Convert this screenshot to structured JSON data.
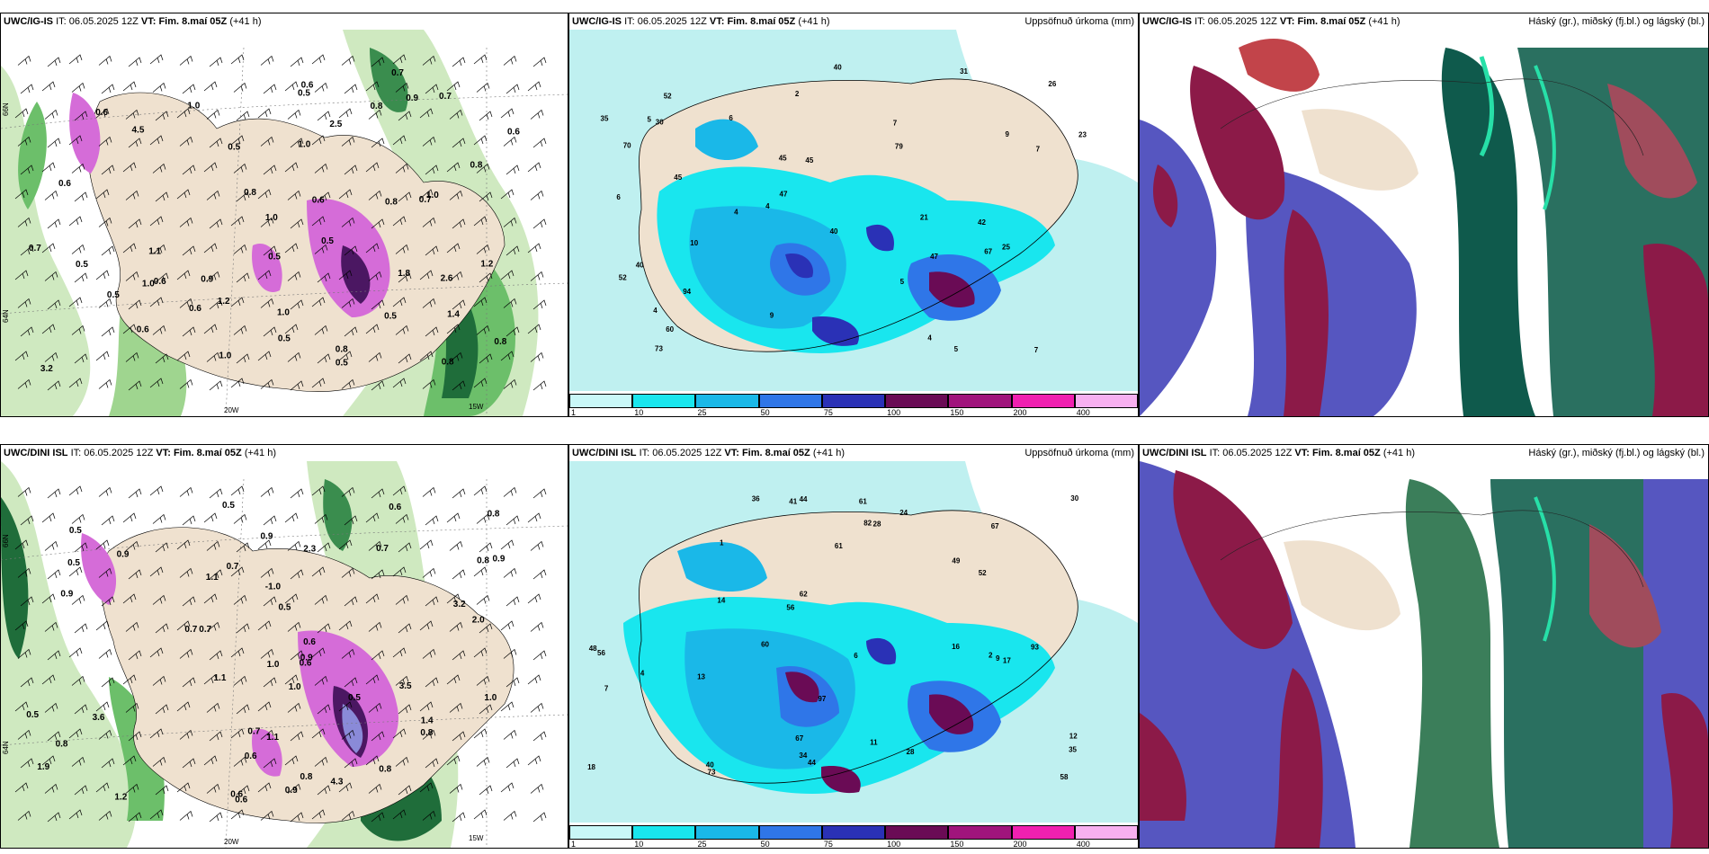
{
  "rows": [
    {
      "model_label": "UWC/IG-IS",
      "it_label": "IT:",
      "it_value": "06.05.2025 12Z",
      "vt_label": "VT:",
      "vt_value": "Fim. 8.maí 05Z",
      "lead": "(+41 h)",
      "wind_labels": [
        "0.8",
        "1.0",
        "0.8",
        "0.6",
        "1.0",
        "0.7",
        "0.5",
        "0.5",
        "1.0",
        "0.7",
        "0.6",
        "0.5",
        "1.2",
        "0.7",
        "1.0",
        "0.5",
        "0.6",
        "0.6",
        "0.8",
        "1.4",
        "2.6",
        "3.2",
        "2.5",
        "1.2",
        "4.5",
        "1.8",
        "0.6",
        "0.8",
        "0.5",
        "0.6",
        "0.5",
        "0.9",
        "1.0",
        "0.6",
        "0.5",
        "0.8",
        "0.8",
        "1.0",
        "1.1",
        "0.9",
        "0.8",
        "0.5",
        "0.6",
        "1.0",
        "0.7",
        "0.5"
      ],
      "precip_labels": [
        "2",
        "4",
        "7",
        "7",
        "7",
        "4",
        "5",
        "9",
        "6",
        "6",
        "5",
        "5",
        "4",
        "52",
        "10",
        "40",
        "45",
        "60",
        "35",
        "73",
        "79",
        "42",
        "94",
        "45",
        "40",
        "23",
        "70",
        "67",
        "45",
        "31",
        "25",
        "40",
        "52",
        "47",
        "47",
        "26",
        "30",
        "21",
        "4",
        "9"
      ]
    },
    {
      "model_label": "UWC/DINI ISL",
      "it_label": "IT:",
      "it_value": "06.05.2025 12Z",
      "vt_label": "VT:",
      "vt_value": "Fim. 8.maí 05Z",
      "lead": "(+41 h)",
      "wind_labels": [
        "0.8",
        "0.7",
        "0.7",
        "1.0",
        "0.9",
        "0.9",
        "0.6",
        "0.6",
        "0.8",
        "1.1",
        "2.0",
        "1.4",
        "0.9",
        "0.6",
        "0.5",
        "0.9",
        "0.6",
        "0.8",
        "1.0",
        "0.5",
        "-1.0",
        "0.5",
        "0.9",
        "0.5",
        "3.2",
        "2.3",
        "3.6",
        "1.0",
        "3.5",
        "0.5",
        "4.3",
        "1.9",
        "1.1",
        "1.2",
        "0.8",
        "0.7",
        "0.8",
        "0.7",
        "0.6",
        "0.6",
        "0.7",
        "0.5",
        "1.1",
        "0.9",
        "0.8"
      ],
      "precip_labels": [
        "9",
        "6",
        "7",
        "4",
        "1",
        "12",
        "34",
        "48",
        "61",
        "28",
        "49",
        "24",
        "56",
        "67",
        "60",
        "73",
        "97",
        "36",
        "93",
        "67",
        "44",
        "58",
        "62",
        "52",
        "44",
        "35",
        "41",
        "61",
        "82",
        "40",
        "56",
        "30",
        "18",
        "17",
        "28",
        "16",
        "14",
        "11",
        "13",
        "2"
      ]
    }
  ],
  "precip_panel": {
    "subtitle": "Uppsöfnuð úrkoma (mm)",
    "legend": {
      "ticks": [
        "1",
        "10",
        "25",
        "50",
        "75",
        "100",
        "150",
        "200",
        "400"
      ],
      "colors": [
        "#c9f7f7",
        "#19e6ee",
        "#1ab8e8",
        "#2f76e8",
        "#2a31b6",
        "#6a0b55",
        "#a0147c",
        "#f020b0",
        "#f7b0f0"
      ]
    }
  },
  "cloud_panel": {
    "subtitle": "Háský (gr.), miðský (fj.bl.) og lágský (bl.)"
  },
  "wind_panel": {
    "axis_labels": {
      "lat_66": "66N",
      "lat_64": "64N",
      "lat_62": "62N",
      "lon_20w": "20W",
      "lon_15w": "15W"
    }
  },
  "colors": {
    "land": "#efe1cf",
    "sea_light": "#bff0f0",
    "wind_green_light": "#cfe9c0",
    "wind_green_mid": "#6cbf6a",
    "wind_green_dark": "#1f6d3a",
    "wind_purple": "#d56cd8",
    "wind_purple_dark": "#4b1762",
    "cloud_high": "#0f5a4c",
    "cloud_mid": "#8c1a48",
    "cloud_low": "#5656c0"
  },
  "icons": {
    "wind_barb": "wind-barb-icon"
  }
}
